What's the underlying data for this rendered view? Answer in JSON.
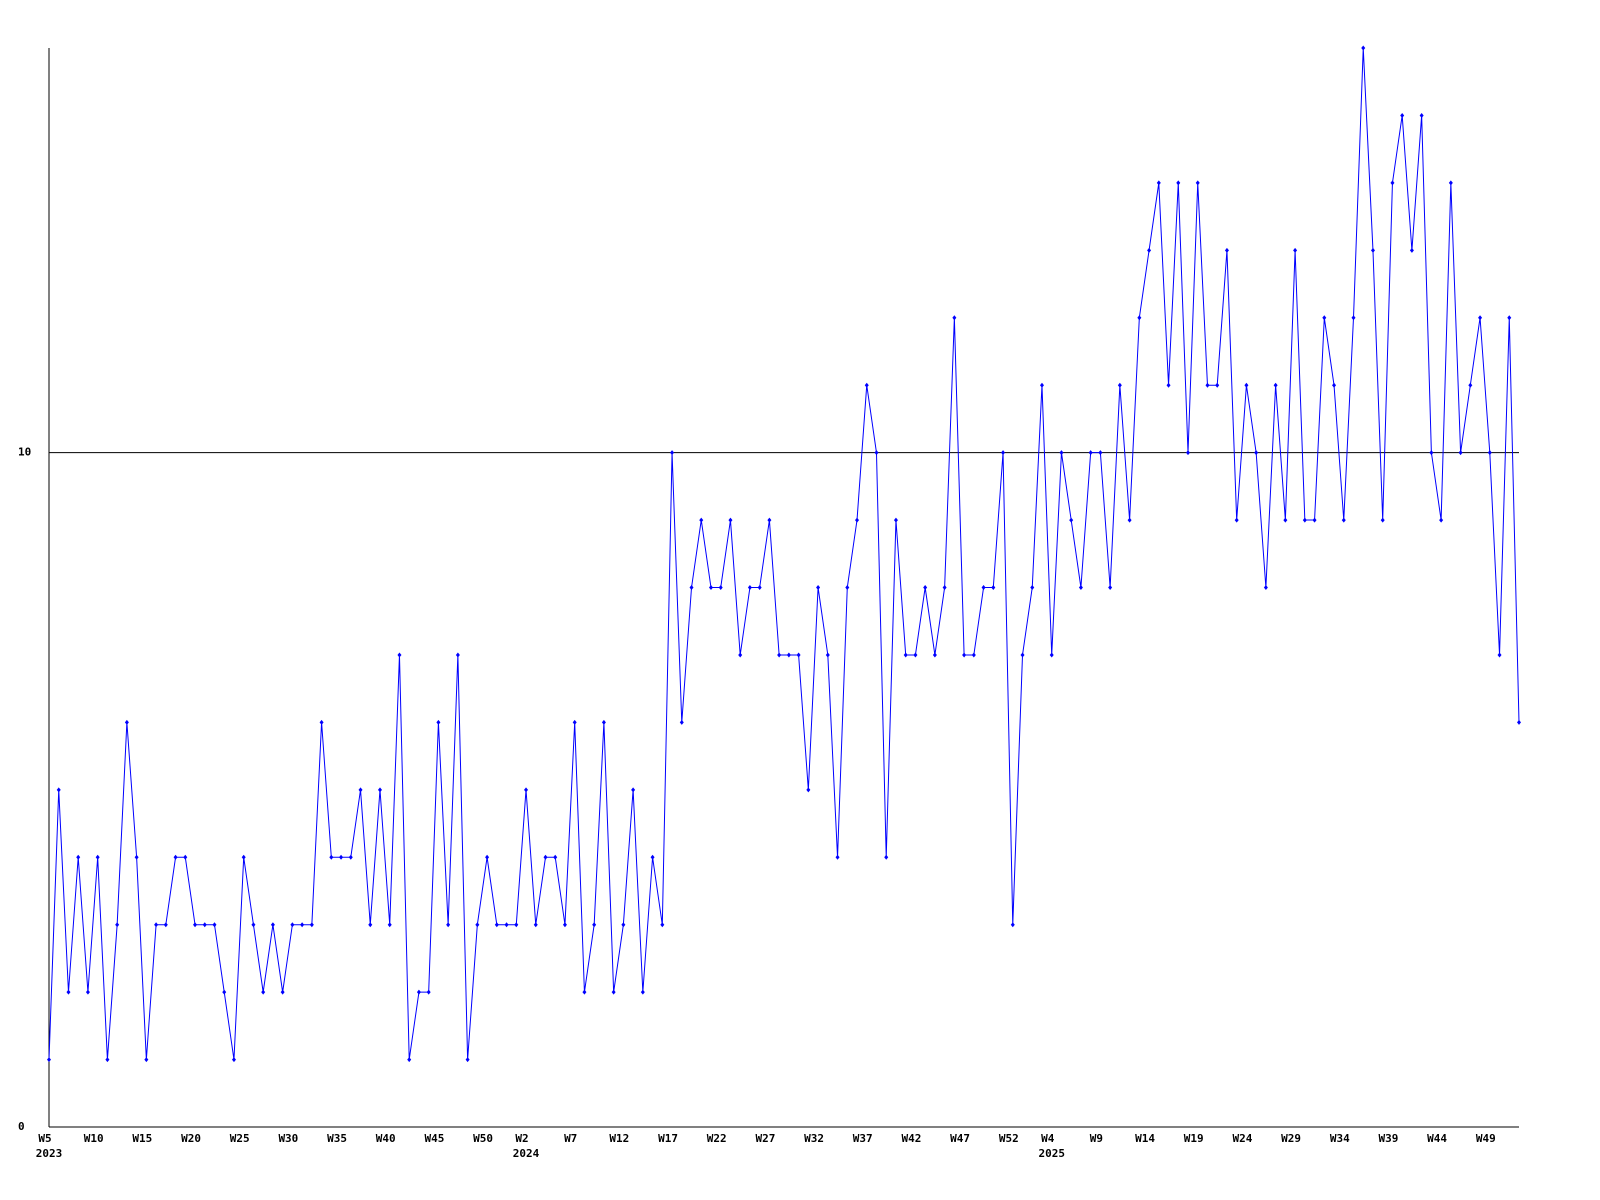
{
  "chart_data": {
    "type": "line",
    "categories": [
      "W5",
      null,
      null,
      null,
      null,
      "W10",
      null,
      null,
      null,
      null,
      "W15",
      null,
      null,
      null,
      null,
      "W20",
      null,
      null,
      null,
      null,
      "W25",
      null,
      null,
      null,
      null,
      "W30",
      null,
      null,
      null,
      null,
      "W35",
      null,
      null,
      null,
      null,
      "W40",
      null,
      null,
      null,
      null,
      "W45",
      null,
      null,
      null,
      null,
      "W50",
      null,
      null,
      null,
      "W2",
      null,
      null,
      null,
      null,
      "W7",
      null,
      null,
      null,
      null,
      "W12",
      null,
      null,
      null,
      null,
      "W17",
      null,
      null,
      null,
      null,
      "W22",
      null,
      null,
      null,
      null,
      "W27",
      null,
      null,
      null,
      null,
      "W32",
      null,
      null,
      null,
      null,
      "W37",
      null,
      null,
      null,
      null,
      "W42",
      null,
      null,
      null,
      null,
      "W47",
      null,
      null,
      null,
      null,
      "W52",
      null,
      null,
      null,
      "W4",
      null,
      null,
      null,
      null,
      "W9",
      null,
      null,
      null,
      null,
      "W14",
      null,
      null,
      null,
      null,
      "W19",
      null,
      null,
      null,
      null,
      "W24",
      null,
      null,
      null,
      null,
      "W29",
      null,
      null,
      null,
      null,
      "W34",
      null,
      null,
      null,
      null,
      "W39",
      null,
      null,
      null,
      null,
      "W44",
      null,
      null,
      null,
      null,
      "W49",
      null,
      null,
      null
    ],
    "year_labels": [
      "2023",
      null,
      null,
      null,
      null,
      null,
      null,
      null,
      null,
      null,
      null,
      null,
      null,
      null,
      null,
      null,
      null,
      null,
      null,
      null,
      null,
      null,
      null,
      null,
      null,
      null,
      null,
      null,
      null,
      null,
      null,
      null,
      null,
      null,
      null,
      null,
      null,
      null,
      null,
      null,
      null,
      null,
      null,
      null,
      null,
      null,
      null,
      null,
      null,
      "2024",
      null,
      null,
      null,
      null,
      null,
      null,
      null,
      null,
      null,
      null,
      null,
      null,
      null,
      null,
      null,
      null,
      null,
      null,
      null,
      null,
      null,
      null,
      null,
      null,
      null,
      null,
      null,
      null,
      null,
      null,
      null,
      null,
      null,
      null,
      null,
      null,
      null,
      null,
      null,
      null,
      null,
      null,
      null,
      null,
      null,
      null,
      null,
      null,
      null,
      null,
      null,
      null,
      null,
      "2025",
      null,
      null,
      null,
      null,
      null,
      null,
      null,
      null,
      null,
      null,
      null,
      null,
      null,
      null,
      null,
      null,
      null,
      null,
      null,
      null,
      null,
      null,
      null,
      null,
      null,
      null,
      null,
      null,
      null,
      null,
      null,
      null,
      null,
      null,
      null,
      null,
      null,
      null,
      null,
      null,
      null,
      null,
      null,
      null,
      null,
      null,
      null,
      null
    ],
    "values": [
      1,
      5,
      2,
      4,
      2,
      4,
      1,
      3,
      6,
      4,
      1,
      3,
      3,
      4,
      4,
      3,
      3,
      3,
      2,
      1,
      4,
      3,
      2,
      3,
      2,
      3,
      3,
      3,
      6,
      4,
      4,
      4,
      5,
      3,
      5,
      3,
      7,
      1,
      2,
      2,
      6,
      3,
      7,
      1,
      3,
      4,
      3,
      3,
      3,
      5,
      3,
      4,
      4,
      3,
      6,
      2,
      3,
      6,
      2,
      3,
      5,
      2,
      4,
      3,
      10,
      6,
      8,
      9,
      8,
      8,
      9,
      7,
      8,
      8,
      9,
      7,
      7,
      7,
      5,
      8,
      7,
      4,
      8,
      9,
      11,
      10,
      4,
      9,
      7,
      7,
      8,
      7,
      8,
      12,
      7,
      7,
      8,
      8,
      10,
      3,
      7,
      8,
      11,
      7,
      10,
      9,
      8,
      10,
      10,
      8,
      11,
      9,
      12,
      13,
      14,
      11,
      14,
      10,
      14,
      11,
      11,
      13,
      9,
      11,
      10,
      8,
      11,
      9,
      13,
      9,
      9,
      12,
      11,
      9,
      12,
      16,
      13,
      9,
      14,
      15,
      13,
      15,
      10,
      9,
      14,
      10,
      11,
      12,
      10,
      7,
      12,
      6
    ],
    "color": "#0000ff",
    "ylim": [
      0,
      16
    ],
    "yticks": [
      0,
      10
    ],
    "grid": true
  }
}
